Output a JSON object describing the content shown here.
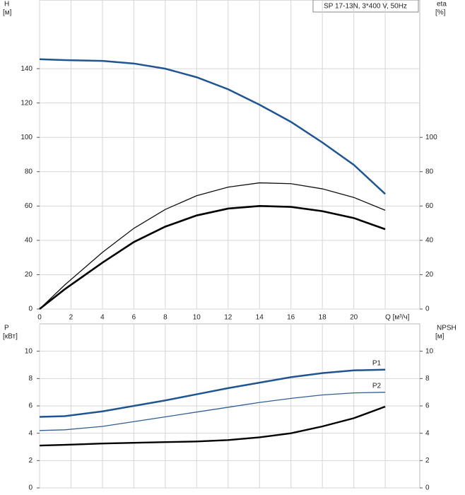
{
  "chart_data": [
    {
      "type": "line",
      "title": "SP 17-13N, 3*400 V, 50Hz",
      "ylabel": "H",
      "yunit": "[м]",
      "y2label": "eta",
      "y2unit": "[%]",
      "x": [
        0,
        1.6,
        4,
        6,
        8,
        10,
        12,
        14,
        16,
        18,
        20,
        22
      ],
      "series": [
        {
          "color": "#1f5591",
          "values": [
            145.5,
            145,
            144.5,
            143,
            140,
            135,
            128,
            119,
            109,
            97,
            84,
            67
          ]
        },
        {
          "color": "#111111",
          "axis": "y2",
          "values": [
            0,
            14,
            33,
            47,
            58,
            66,
            71,
            73.5,
            73,
            70,
            65,
            57.5
          ]
        },
        {
          "color": "#000000",
          "axis": "y2",
          "values": [
            0,
            11.5,
            27,
            39,
            48,
            54.5,
            58.5,
            60,
            59.5,
            57,
            53,
            46.5
          ]
        }
      ],
      "xlim": [
        0,
        24.2
      ],
      "xticks": [
        0,
        2,
        4,
        6,
        8,
        10,
        12,
        14,
        16,
        18,
        20,
        {
          "value": 22,
          "label": "Q [м³/ч]"
        }
      ],
      "ylim": [
        0,
        180
      ],
      "yticks": [
        0,
        20,
        40,
        60,
        80,
        100,
        120,
        140
      ],
      "y2lim": [
        0,
        180
      ],
      "y2ticks": [
        0,
        20,
        40,
        60,
        80,
        100
      ],
      "grid": true
    },
    {
      "type": "line",
      "ylabel": "P",
      "yunit": "[кВт]",
      "y2label": "NPSH",
      "y2unit": "[м]",
      "x": [
        0,
        1.6,
        4,
        6,
        8,
        10,
        12,
        14,
        16,
        18,
        20,
        22
      ],
      "series": [
        {
          "name": "P1",
          "color": "#1f5591",
          "values": [
            5.2,
            5.25,
            5.6,
            6.0,
            6.4,
            6.85,
            7.3,
            7.7,
            8.1,
            8.4,
            8.6,
            8.65
          ]
        },
        {
          "name": "P2",
          "color": "#2e5f95",
          "values": [
            4.2,
            4.25,
            4.5,
            4.85,
            5.2,
            5.55,
            5.9,
            6.25,
            6.55,
            6.8,
            6.95,
            7.0
          ]
        },
        {
          "color": "#000000",
          "axis": "y2",
          "values": [
            3.1,
            3.15,
            3.25,
            3.3,
            3.35,
            3.4,
            3.5,
            3.7,
            4.0,
            4.5,
            5.1,
            5.95
          ]
        }
      ],
      "xlim": [
        0,
        24.2
      ],
      "ylim": [
        0,
        12
      ],
      "yticks": [
        0,
        2,
        4,
        6,
        8,
        10
      ],
      "y2lim": [
        0,
        12
      ],
      "y2ticks": [
        0,
        2,
        4,
        6,
        8,
        10
      ],
      "grid": true
    }
  ]
}
